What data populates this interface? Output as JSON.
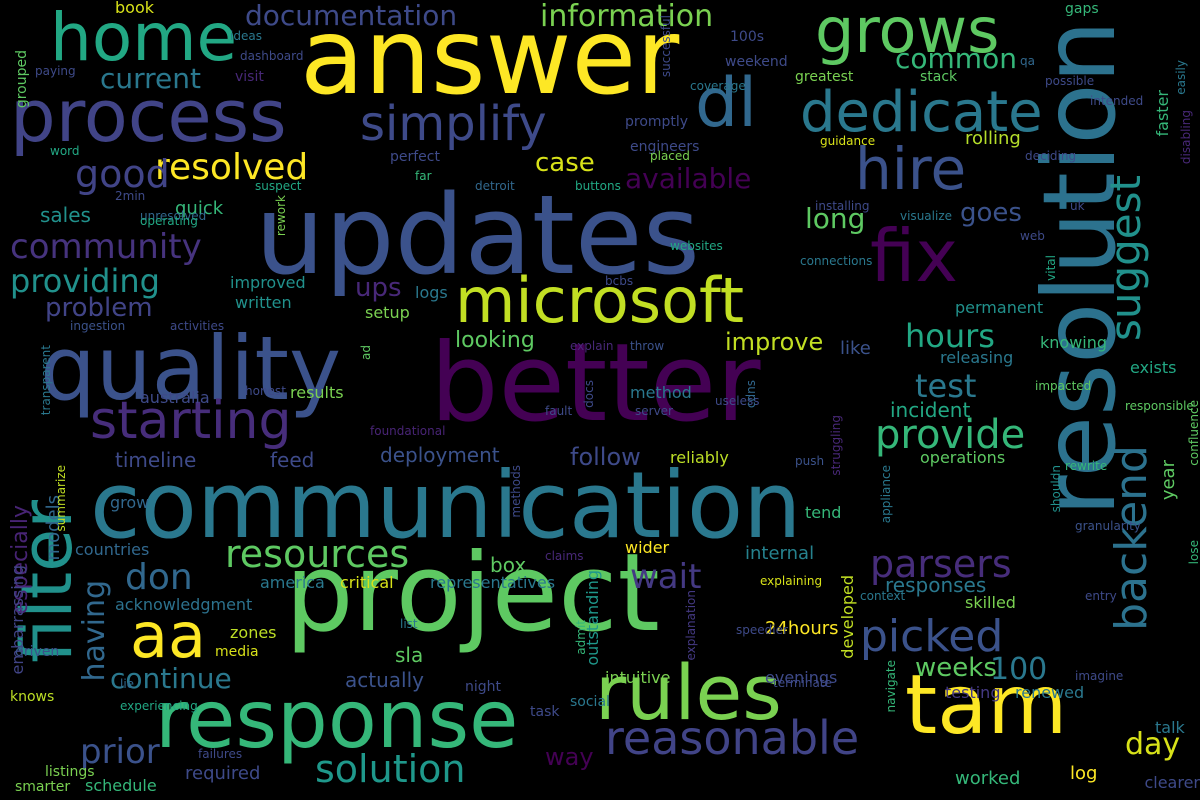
{
  "words": [
    {
      "text": "updates",
      "color": "#3b528b"
    },
    {
      "text": "communication",
      "color": "#2a788e"
    },
    {
      "text": "better",
      "color": "#440154"
    },
    {
      "text": "project",
      "color": "#5ec962"
    },
    {
      "text": "answer",
      "color": "#fde725"
    },
    {
      "text": "resolution",
      "color": "#2c728e"
    },
    {
      "text": "quality",
      "color": "#3b528b"
    },
    {
      "text": "response",
      "color": "#35b779"
    },
    {
      "text": "rules",
      "color": "#7ad151"
    },
    {
      "text": "tam",
      "color": "#fde725"
    },
    {
      "text": "process",
      "color": "#414487"
    },
    {
      "text": "filter",
      "color": "#21918c"
    },
    {
      "text": "home",
      "color": "#22a884"
    },
    {
      "text": "microsoft",
      "color": "#c2df23"
    },
    {
      "text": "grows",
      "color": "#5ec962"
    },
    {
      "text": "fix",
      "color": "#440154"
    },
    {
      "text": "dl",
      "color": "#31688e"
    },
    {
      "text": "hire",
      "color": "#3b528b"
    },
    {
      "text": "dedicate",
      "color": "#2a788e"
    },
    {
      "text": "simplify",
      "color": "#3e4a89"
    },
    {
      "text": "starting",
      "color": "#472d7b"
    },
    {
      "text": "aa",
      "color": "#fde725"
    },
    {
      "text": "reasonable",
      "color": "#414487"
    },
    {
      "text": "picked",
      "color": "#3b528b"
    },
    {
      "text": "backend",
      "color": "#2c728e"
    },
    {
      "text": "suggest",
      "color": "#21918c"
    },
    {
      "text": "provide",
      "color": "#35b779"
    },
    {
      "text": "solution",
      "color": "#1f988b"
    },
    {
      "text": "resources",
      "color": "#5ec962"
    },
    {
      "text": "resolved",
      "color": "#fde725"
    },
    {
      "text": "community",
      "color": "#46337e"
    },
    {
      "text": "providing",
      "color": "#21918c"
    },
    {
      "text": "parsers",
      "color": "#472d7b"
    },
    {
      "text": "don",
      "color": "#31688e"
    },
    {
      "text": "good",
      "color": "#414487"
    },
    {
      "text": "information",
      "color": "#7ad151"
    },
    {
      "text": "documentation",
      "color": "#3e4a89"
    },
    {
      "text": "current",
      "color": "#2a788e"
    },
    {
      "text": "wait",
      "color": "#443983"
    },
    {
      "text": "hours",
      "color": "#22a884"
    },
    {
      "text": "test",
      "color": "#2a788e"
    },
    {
      "text": "prior",
      "color": "#3b528b"
    },
    {
      "text": "having",
      "color": "#31688e"
    },
    {
      "text": "continue",
      "color": "#2a788e"
    },
    {
      "text": "available",
      "color": "#440154"
    },
    {
      "text": "common",
      "color": "#35b779"
    },
    {
      "text": "long",
      "color": "#5ec962"
    },
    {
      "text": "problem",
      "color": "#414487"
    },
    {
      "text": "case",
      "color": "#d8e219"
    },
    {
      "text": "weeks",
      "color": "#5ec962"
    },
    {
      "text": "especially",
      "color": "#482475"
    },
    {
      "text": "day",
      "color": "#d8e219"
    },
    {
      "text": "100",
      "color": "#2a788e"
    },
    {
      "text": "goes",
      "color": "#3b528b"
    },
    {
      "text": "improve",
      "color": "#c2df23"
    },
    {
      "text": "ups",
      "color": "#482878"
    },
    {
      "text": "follow",
      "color": "#3e4a89"
    },
    {
      "text": "timeline",
      "color": "#3e4a89"
    },
    {
      "text": "sales",
      "color": "#21918c"
    },
    {
      "text": "looking",
      "color": "#5ec962"
    },
    {
      "text": "responses",
      "color": "#2a788e"
    },
    {
      "text": "box",
      "color": "#5ec962"
    },
    {
      "text": "incident",
      "color": "#22a884"
    },
    {
      "text": "feed",
      "color": "#3e4a89"
    },
    {
      "text": "deployment",
      "color": "#3b528b"
    },
    {
      "text": "quick",
      "color": "#35b779"
    },
    {
      "text": "models",
      "color": "#31688e"
    },
    {
      "text": "internal",
      "color": "#26828e"
    },
    {
      "text": "like",
      "color": "#3b528b"
    },
    {
      "text": "sla",
      "color": "#5ec962"
    },
    {
      "text": "actually",
      "color": "#3b528b"
    },
    {
      "text": "way",
      "color": "#440154"
    },
    {
      "text": "worked",
      "color": "#35b779"
    },
    {
      "text": "log",
      "color": "#fde725"
    },
    {
      "text": "required",
      "color": "#3e4a89"
    },
    {
      "text": "24hours",
      "color": "#fde725"
    },
    {
      "text": "year",
      "color": "#5ec962"
    },
    {
      "text": "wider",
      "color": "#fde725"
    },
    {
      "text": "zones",
      "color": "#bddf26"
    },
    {
      "text": "embarrassing",
      "color": "#414487"
    },
    {
      "text": "rolling",
      "color": "#b5de2b"
    },
    {
      "text": "improved",
      "color": "#21918c"
    },
    {
      "text": "written",
      "color": "#21918c"
    },
    {
      "text": "setup",
      "color": "#7ad151"
    },
    {
      "text": "logs",
      "color": "#2a788e"
    },
    {
      "text": "permanent",
      "color": "#21918c"
    },
    {
      "text": "knowing",
      "color": "#35b779"
    },
    {
      "text": "releasing",
      "color": "#2a788e"
    },
    {
      "text": "exists",
      "color": "#22a884"
    },
    {
      "text": "faster",
      "color": "#35b779"
    },
    {
      "text": "operations",
      "color": "#5ec962"
    },
    {
      "text": "reliably",
      "color": "#bddf26"
    },
    {
      "text": "australia",
      "color": "#3e4a89"
    },
    {
      "text": "results",
      "color": "#7ad151"
    },
    {
      "text": "method",
      "color": "#2a788e"
    },
    {
      "text": "critical",
      "color": "#d8e219"
    },
    {
      "text": "acknowledgment",
      "color": "#2c728e"
    },
    {
      "text": "countries",
      "color": "#31688e"
    },
    {
      "text": "developed",
      "color": "#c2df23"
    },
    {
      "text": "intuitive",
      "color": "#7ad151"
    },
    {
      "text": "outstanding",
      "color": "#1f988b"
    },
    {
      "text": "america",
      "color": "#2a788e"
    },
    {
      "text": "representatives",
      "color": "#2a788e"
    },
    {
      "text": "grow",
      "color": "#31688e"
    },
    {
      "text": "tend",
      "color": "#35b779"
    },
    {
      "text": "evenings",
      "color": "#3e4a89"
    },
    {
      "text": "skilled",
      "color": "#7ad151"
    },
    {
      "text": "testing",
      "color": "#443983"
    },
    {
      "text": "renewed",
      "color": "#2a788e"
    },
    {
      "text": "talk",
      "color": "#2a788e"
    },
    {
      "text": "clearer",
      "color": "#3e4a89"
    },
    {
      "text": "schedule",
      "color": "#35b779"
    },
    {
      "text": "smarter",
      "color": "#7ad151"
    },
    {
      "text": "listings",
      "color": "#7ad151"
    },
    {
      "text": "knows",
      "color": "#bddf26"
    },
    {
      "text": "driven",
      "color": "#3b528b"
    },
    {
      "text": "media",
      "color": "#d8e219"
    },
    {
      "text": "night",
      "color": "#3e4a89"
    },
    {
      "text": "social",
      "color": "#2a788e"
    },
    {
      "text": "task",
      "color": "#3e4a89"
    },
    {
      "text": "failures",
      "color": "#3e4a89"
    },
    {
      "text": "experiencing",
      "color": "#22a884"
    },
    {
      "text": "lie",
      "color": "#31688e"
    },
    {
      "text": "list",
      "color": "#2a788e"
    },
    {
      "text": "admit",
      "color": "#35b779"
    },
    {
      "text": "explanation",
      "color": "#443983"
    },
    {
      "text": "claims",
      "color": "#482878"
    },
    {
      "text": "methods",
      "color": "#3e4a89"
    },
    {
      "text": "explaining",
      "color": "#d8e219"
    },
    {
      "text": "context",
      "color": "#2a788e"
    },
    {
      "text": "navigate",
      "color": "#35b779"
    },
    {
      "text": "imagine",
      "color": "#3e4a89"
    },
    {
      "text": "entry",
      "color": "#3e4a89"
    },
    {
      "text": "lose",
      "color": "#35b779"
    },
    {
      "text": "granularity",
      "color": "#3b528b"
    },
    {
      "text": "shouldn",
      "color": "#21918c"
    },
    {
      "text": "appliance",
      "color": "#2a788e"
    },
    {
      "text": "rewrite",
      "color": "#35b779"
    },
    {
      "text": "confluence",
      "color": "#5ec962"
    },
    {
      "text": "responsible",
      "color": "#5ec962"
    },
    {
      "text": "impacted",
      "color": "#5ec962"
    },
    {
      "text": "summarize",
      "color": "#c2df23"
    },
    {
      "text": "transparent",
      "color": "#2a788e"
    },
    {
      "text": "foundational",
      "color": "#482475"
    },
    {
      "text": "honest",
      "color": "#3e4a89"
    },
    {
      "text": "ad",
      "color": "#5ec962"
    },
    {
      "text": "fault",
      "color": "#3e4a89"
    },
    {
      "text": "server",
      "color": "#3e4a89"
    },
    {
      "text": "useless",
      "color": "#3e4a89"
    },
    {
      "text": "docs",
      "color": "#3e4a89"
    },
    {
      "text": "cdns",
      "color": "#31688e"
    },
    {
      "text": "struggling",
      "color": "#482878"
    },
    {
      "text": "push",
      "color": "#3b528b"
    },
    {
      "text": "explain",
      "color": "#482878"
    },
    {
      "text": "throw",
      "color": "#3b528b"
    },
    {
      "text": "ingestion",
      "color": "#3b528b"
    },
    {
      "text": "activities",
      "color": "#3e4a89"
    },
    {
      "text": "bcbs",
      "color": "#3e4a89"
    },
    {
      "text": "connections",
      "color": "#2a788e"
    },
    {
      "text": "websites",
      "color": "#22a884"
    },
    {
      "text": "installing",
      "color": "#3e4a89"
    },
    {
      "text": "visualize",
      "color": "#2a788e"
    },
    {
      "text": "web",
      "color": "#3e4a89"
    },
    {
      "text": "vital",
      "color": "#22a884"
    },
    {
      "text": "uk",
      "color": "#3e4a89"
    },
    {
      "text": "disabling",
      "color": "#482878"
    },
    {
      "text": "guidance",
      "color": "#d8e219"
    },
    {
      "text": "deciding",
      "color": "#3e4a89"
    },
    {
      "text": "easily",
      "color": "#2a788e"
    },
    {
      "text": "intended",
      "color": "#3e4a89"
    },
    {
      "text": "possible",
      "color": "#3e4a89"
    },
    {
      "text": "qa",
      "color": "#31688e"
    },
    {
      "text": "gaps",
      "color": "#35b779"
    },
    {
      "text": "stack",
      "color": "#5ec962"
    },
    {
      "text": "greatest",
      "color": "#7ad151"
    },
    {
      "text": "coverage",
      "color": "#2a788e"
    },
    {
      "text": "successful",
      "color": "#3e4a89"
    },
    {
      "text": "100s",
      "color": "#3e4a89"
    },
    {
      "text": "weekend",
      "color": "#3e4a89"
    },
    {
      "text": "promptly",
      "color": "#3e4a89"
    },
    {
      "text": "engineers",
      "color": "#3e4a89"
    },
    {
      "text": "placed",
      "color": "#7ad151"
    },
    {
      "text": "buttons",
      "color": "#22a884"
    },
    {
      "text": "detroit",
      "color": "#31688e"
    },
    {
      "text": "far",
      "color": "#35b779"
    },
    {
      "text": "perfect",
      "color": "#3e4a89"
    },
    {
      "text": "suspect",
      "color": "#22a884"
    },
    {
      "text": "2min",
      "color": "#3e4a89"
    },
    {
      "text": "unresolved",
      "color": "#31688e"
    },
    {
      "text": "operating",
      "color": "#22a884"
    },
    {
      "text": "rework",
      "color": "#7ad151"
    },
    {
      "text": "word",
      "color": "#22a884"
    },
    {
      "text": "visit",
      "color": "#482878"
    },
    {
      "text": "dashboard",
      "color": "#3e4a89"
    },
    {
      "text": "ideas",
      "color": "#2a788e"
    },
    {
      "text": "paying",
      "color": "#3e4a89"
    },
    {
      "text": "grouped",
      "color": "#5ec962"
    },
    {
      "text": "book",
      "color": "#d8e219"
    },
    {
      "text": "speedier",
      "color": "#3e4a89"
    },
    {
      "text": "terminate",
      "color": "#3e4a89"
    }
  ]
}
